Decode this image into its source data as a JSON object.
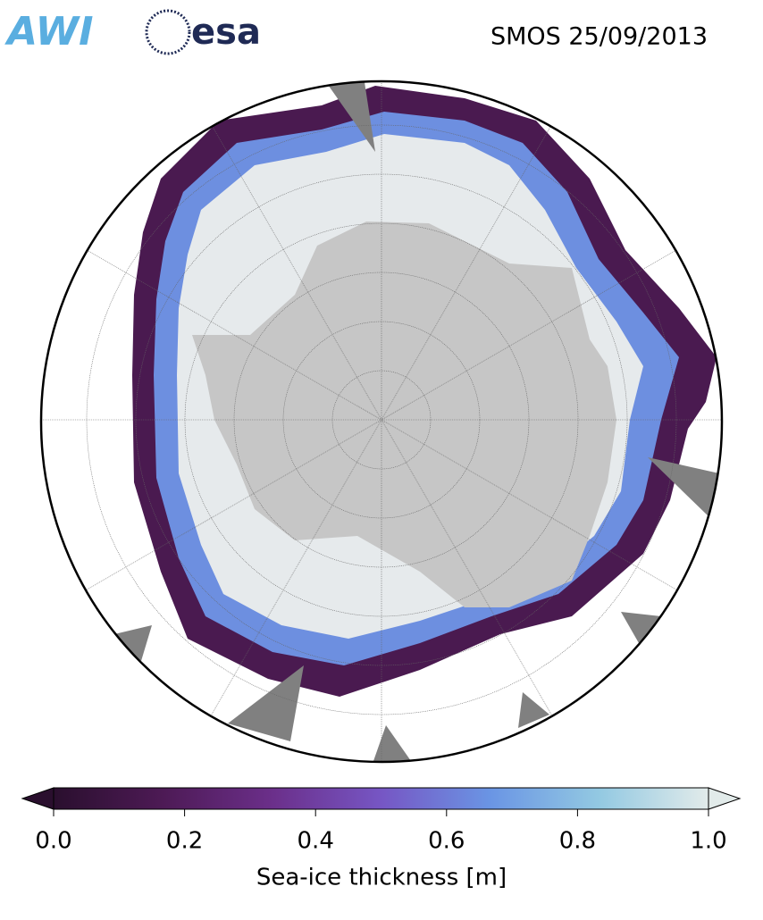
{
  "header": {
    "title": "SMOS 25/09/2013",
    "logos": [
      "AWI",
      "esa"
    ]
  },
  "colorbar": {
    "label": "Sea-ice thickness [m]",
    "lim": [
      0,
      1
    ],
    "ticks": [
      {
        "value": 0,
        "label": "0.0"
      },
      0.2,
      0.4,
      0.6,
      0.8,
      {
        "value": 1,
        "label": "1.0"
      }
    ],
    "colormap": [
      "#2a0f2e",
      "#4d1a55",
      "#6b2f8a",
      "#7656c4",
      "#6a95e4",
      "#93c9e2",
      "#e2ebea"
    ]
  }
}
